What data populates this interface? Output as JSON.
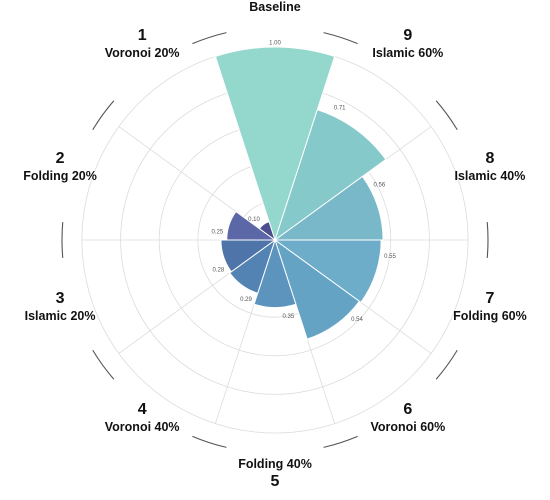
{
  "chart_data": {
    "type": "polar-bar",
    "rmax": 1.0,
    "categories": [
      {
        "num": "",
        "name": "Baseline",
        "value": 1.0,
        "value_label": "1.00",
        "color": "#94d8cd"
      },
      {
        "num": "9",
        "name": "Islamic 60%",
        "value": 0.71,
        "value_label": "0.71",
        "color": "#86c9cb"
      },
      {
        "num": "8",
        "name": "Islamic 40%",
        "value": 0.56,
        "value_label": "0.56",
        "color": "#78b8c9"
      },
      {
        "num": "7",
        "name": "Folding 60%",
        "value": 0.55,
        "value_label": "0.55",
        "color": "#6eadc9"
      },
      {
        "num": "6",
        "name": "Voronoi 60%",
        "value": 0.54,
        "value_label": "0.54",
        "color": "#65a3c5"
      },
      {
        "num": "5",
        "name": "Folding 40%",
        "value": 0.35,
        "value_label": "0.35",
        "color": "#5c94bd"
      },
      {
        "num": "4",
        "name": "Voronoi 40%",
        "value": 0.29,
        "value_label": "0.29",
        "color": "#5383b2"
      },
      {
        "num": "3",
        "name": "Islamic 20%",
        "value": 0.28,
        "value_label": "0.28",
        "color": "#4e74a9"
      },
      {
        "num": "2",
        "name": "Folding 20%",
        "value": 0.25,
        "value_label": "0.25",
        "color": "#5b67a6"
      },
      {
        "num": "1",
        "name": "Voronoi 20%",
        "value": 0.1,
        "value_label": "0.10",
        "color": "#4b4f8e"
      }
    ],
    "grid": true,
    "grid_rings": [
      0.2,
      0.4,
      0.6,
      0.8,
      1.0
    ]
  }
}
